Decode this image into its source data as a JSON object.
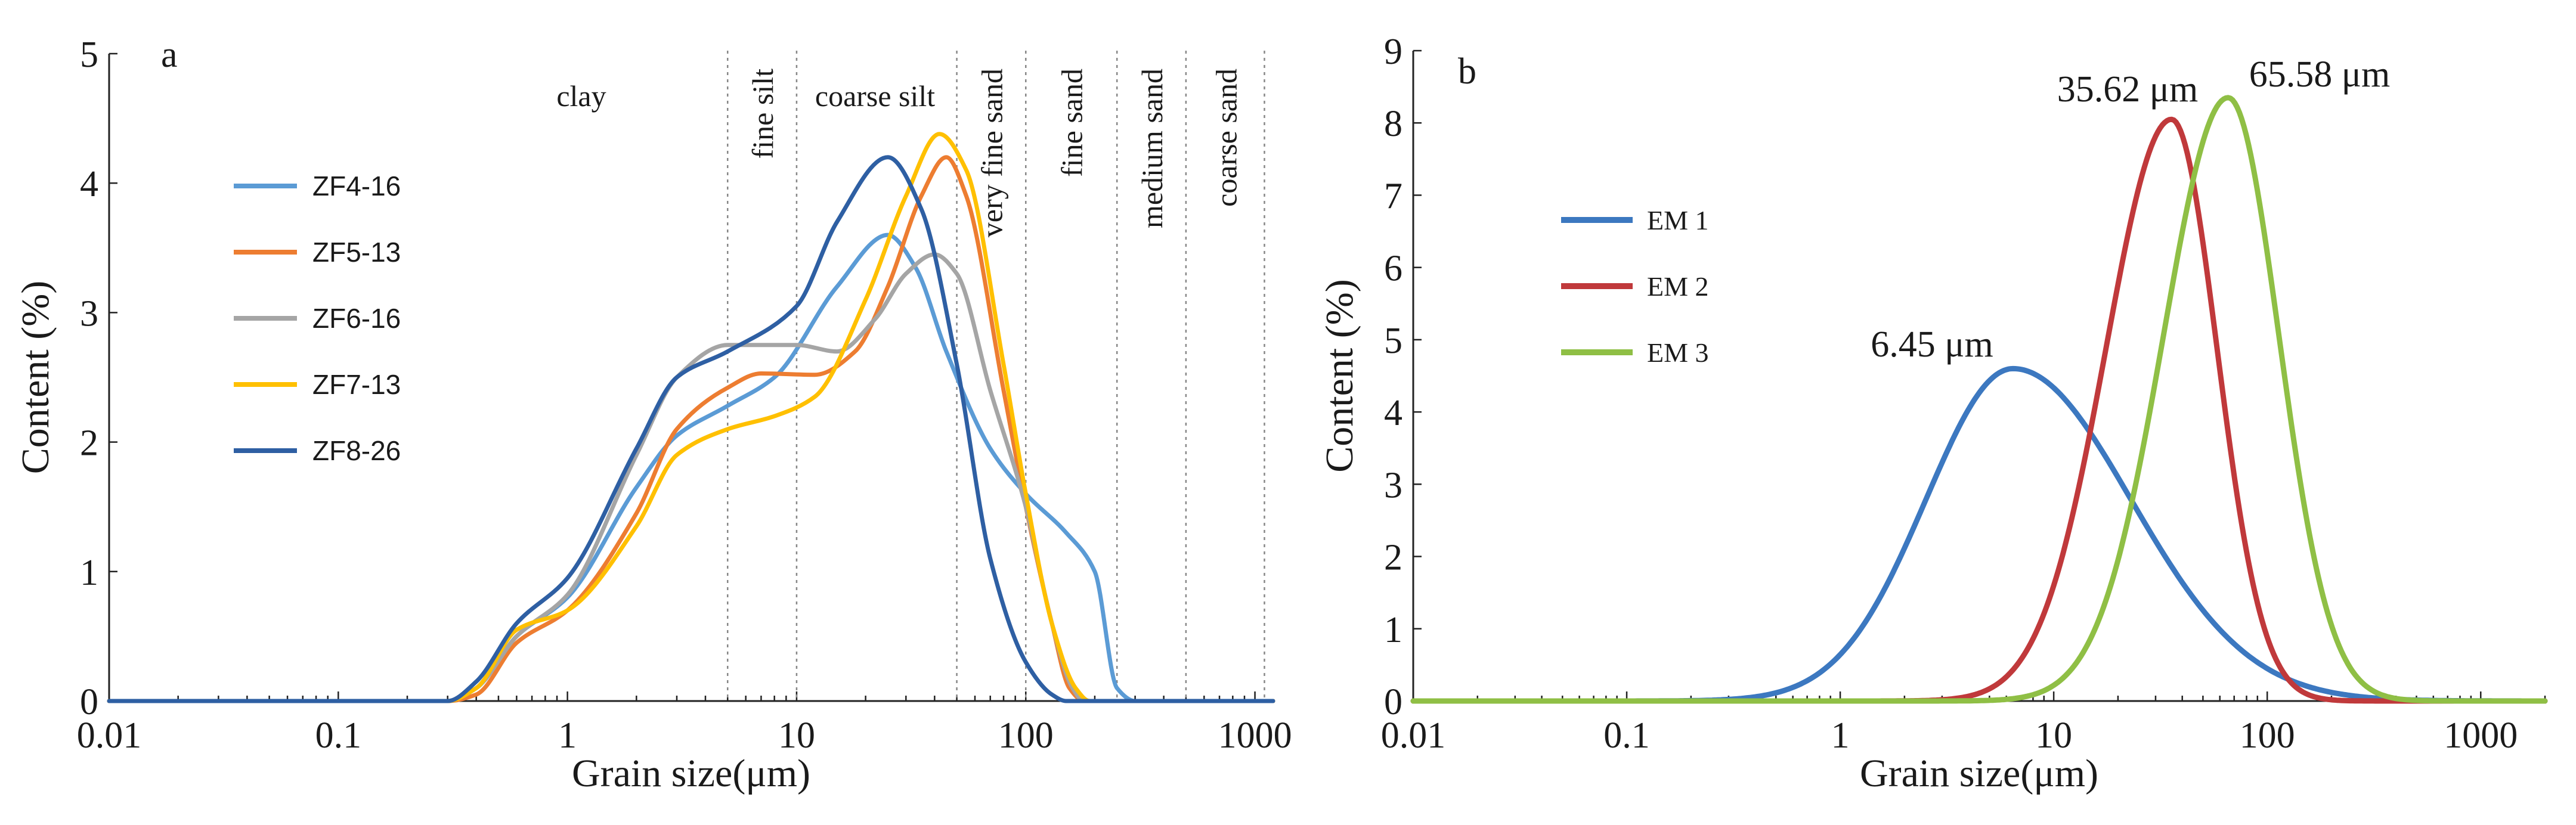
{
  "chart_data": [
    {
      "panel": "a",
      "type": "line",
      "xlabel": "Grain size(μm)",
      "ylabel": "Content (%)",
      "xscale": "log",
      "xlim": [
        0.01,
        1200
      ],
      "ylim": [
        0,
        5
      ],
      "xticks": [
        0.01,
        0.1,
        1,
        10,
        100,
        1000
      ],
      "xtick_labels": [
        "0.01",
        "0.1",
        "1",
        "10",
        "100",
        "1000"
      ],
      "yticks": [
        0,
        1,
        2,
        3,
        4,
        5
      ],
      "ytick_labels": [
        "0",
        "1",
        "2",
        "3",
        "4",
        "5"
      ],
      "legend_position": "upper-left",
      "size_class_boundaries": [
        5,
        10,
        50,
        100,
        250,
        500,
        1100
      ],
      "size_classes": [
        "clay",
        "fine silt",
        "coarse silt",
        "very fine sand",
        "fine sand",
        "medium sand",
        "coarse sand"
      ],
      "series": [
        {
          "name": "ZF4-16",
          "color": "#5b9bd5",
          "points": [
            [
              0.01,
              0
            ],
            [
              0.3,
              0
            ],
            [
              0.4,
              0.1
            ],
            [
              0.6,
              0.5
            ],
            [
              1,
              0.8
            ],
            [
              2,
              1.65
            ],
            [
              3,
              2.05
            ],
            [
              5,
              2.28
            ],
            [
              8,
              2.5
            ],
            [
              15,
              3.2
            ],
            [
              25,
              3.6
            ],
            [
              33,
              3.35
            ],
            [
              45,
              2.7
            ],
            [
              70,
              1.95
            ],
            [
              100,
              1.6
            ],
            [
              150,
              1.3
            ],
            [
              200,
              1.0
            ],
            [
              250,
              0.1
            ],
            [
              300,
              0
            ],
            [
              1200,
              0
            ]
          ]
        },
        {
          "name": "ZF5-13",
          "color": "#ed7d31",
          "points": [
            [
              0.01,
              0
            ],
            [
              0.3,
              0
            ],
            [
              0.4,
              0.05
            ],
            [
              0.6,
              0.45
            ],
            [
              1,
              0.7
            ],
            [
              2,
              1.45
            ],
            [
              3,
              2.1
            ],
            [
              5,
              2.42
            ],
            [
              7,
              2.53
            ],
            [
              12,
              2.52
            ],
            [
              18,
              2.7
            ],
            [
              25,
              3.2
            ],
            [
              35,
              3.9
            ],
            [
              45,
              4.2
            ],
            [
              55,
              3.9
            ],
            [
              80,
              2.4
            ],
            [
              100,
              1.5
            ],
            [
              130,
              0.6
            ],
            [
              155,
              0.1
            ],
            [
              180,
              0
            ],
            [
              1200,
              0
            ]
          ]
        },
        {
          "name": "ZF6-16",
          "color": "#a5a5a5",
          "points": [
            [
              0.01,
              0
            ],
            [
              0.3,
              0
            ],
            [
              0.4,
              0.1
            ],
            [
              0.6,
              0.5
            ],
            [
              1,
              0.82
            ],
            [
              2,
              1.9
            ],
            [
              3,
              2.5
            ],
            [
              5,
              2.75
            ],
            [
              10,
              2.75
            ],
            [
              15,
              2.7
            ],
            [
              22,
              2.95
            ],
            [
              30,
              3.3
            ],
            [
              40,
              3.45
            ],
            [
              50,
              3.3
            ],
            [
              70,
              2.4
            ],
            [
              100,
              1.5
            ],
            [
              130,
              0.6
            ],
            [
              160,
              0.1
            ],
            [
              180,
              0
            ],
            [
              1200,
              0
            ]
          ]
        },
        {
          "name": "ZF7-13",
          "color": "#ffc000",
          "points": [
            [
              0.01,
              0
            ],
            [
              0.3,
              0
            ],
            [
              0.4,
              0.1
            ],
            [
              0.6,
              0.55
            ],
            [
              1,
              0.7
            ],
            [
              2,
              1.35
            ],
            [
              3,
              1.9
            ],
            [
              5,
              2.1
            ],
            [
              8,
              2.2
            ],
            [
              12,
              2.35
            ],
            [
              20,
              3.1
            ],
            [
              30,
              3.9
            ],
            [
              42,
              4.38
            ],
            [
              55,
              4.1
            ],
            [
              80,
              2.6
            ],
            [
              100,
              1.6
            ],
            [
              130,
              0.6
            ],
            [
              165,
              0.1
            ],
            [
              190,
              0
            ],
            [
              1200,
              0
            ]
          ]
        },
        {
          "name": "ZF8-26",
          "color": "#2e5fa3",
          "points": [
            [
              0.01,
              0
            ],
            [
              0.3,
              0
            ],
            [
              0.4,
              0.15
            ],
            [
              0.6,
              0.6
            ],
            [
              1,
              0.95
            ],
            [
              2,
              1.95
            ],
            [
              3,
              2.5
            ],
            [
              5,
              2.7
            ],
            [
              10,
              3.05
            ],
            [
              15,
              3.7
            ],
            [
              25,
              4.2
            ],
            [
              35,
              3.8
            ],
            [
              50,
              2.6
            ],
            [
              70,
              1.1
            ],
            [
              100,
              0.3
            ],
            [
              130,
              0.05
            ],
            [
              150,
              0
            ],
            [
              1200,
              0
            ]
          ]
        }
      ]
    },
    {
      "panel": "b",
      "type": "line",
      "xlabel": "Grain size(μm)",
      "ylabel": "Content (%)",
      "xscale": "log",
      "xlim": [
        0.01,
        2000
      ],
      "ylim": [
        0,
        9
      ],
      "xticks": [
        0.01,
        0.1,
        1,
        10,
        100,
        1000
      ],
      "xtick_labels": [
        "0.01",
        "0.1",
        "1",
        "10",
        "100",
        "1000"
      ],
      "yticks": [
        0,
        1,
        2,
        3,
        4,
        5,
        6,
        7,
        8,
        9
      ],
      "ytick_labels": [
        "0",
        "1",
        "2",
        "3",
        "4",
        "5",
        "6",
        "7",
        "8",
        "9"
      ],
      "legend_position": "upper-left",
      "series": [
        {
          "name": "EM 1",
          "color": "#3c78c0",
          "mode": 6.45,
          "peak": 4.6,
          "sigma_log10": 0.48,
          "skew": 0.15,
          "mode_label": "6.45 μm"
        },
        {
          "name": "EM 2",
          "color": "#c0393b",
          "mode": 35.62,
          "peak": 8.05,
          "sigma_log10": 0.26,
          "skew": -0.18,
          "mode_label": "35.62 μm"
        },
        {
          "name": "EM 3",
          "color": "#8fbf45",
          "mode": 65.58,
          "peak": 8.35,
          "sigma_log10": 0.27,
          "skew": -0.12,
          "mode_label": "65.58 μm"
        }
      ]
    }
  ]
}
